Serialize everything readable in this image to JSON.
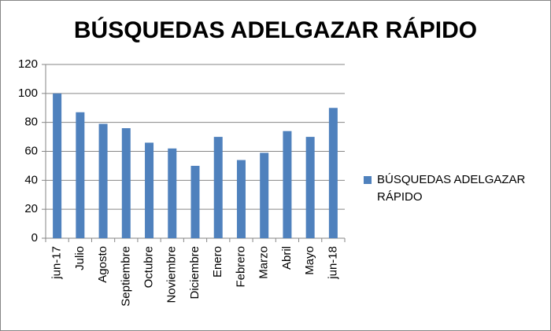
{
  "chart_data": {
    "type": "bar",
    "title": "BÚSQUEDAS ADELGAZAR RÁPIDO",
    "categories": [
      "jun-17",
      "Julio",
      "Agosto",
      "Septiembre",
      "Octubre",
      "Noviembre",
      "Diciembre",
      "Enero",
      "Febrero",
      "Marzo",
      "Abril",
      "Mayo",
      "jun-18"
    ],
    "series": [
      {
        "name": "BÚSQUEDAS ADELGAZAR RÁPIDO",
        "color": "#4f81bd",
        "values": [
          100,
          87,
          79,
          76,
          66,
          62,
          50,
          70,
          54,
          59,
          74,
          70,
          90
        ]
      }
    ],
    "ylim": [
      0,
      120
    ],
    "yticks": [
      0,
      20,
      40,
      60,
      80,
      100,
      120
    ],
    "grid": true,
    "legend": "right"
  }
}
